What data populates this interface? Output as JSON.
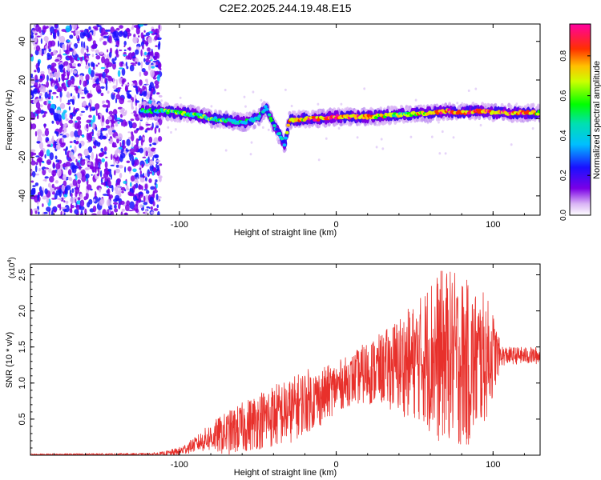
{
  "title": "C2E2.2025.244.19.48.E15",
  "chart_data": [
    {
      "type": "heatmap",
      "xlabel": "Height of straight line (km)",
      "ylabel": "Frequency (Hz)",
      "xlim": [
        -195,
        130
      ],
      "ylim": [
        -50,
        49
      ],
      "x_ticks": [
        -100,
        0,
        100
      ],
      "y_ticks": [
        -40,
        -20,
        0,
        20,
        40
      ],
      "colorbar": {
        "label": "Normalized spectral amplitude",
        "range": [
          0,
          0.96
        ],
        "ticks": [
          "0.0",
          "0.2",
          "0.4",
          "0.6",
          "0.8"
        ],
        "tick_values": [
          0,
          0.2,
          0.4,
          0.6,
          0.8
        ]
      },
      "noise_region_x": [
        -195,
        -115
      ],
      "ridge": {
        "x": [
          -125,
          -110,
          -100,
          -90,
          -80,
          -70,
          -60,
          -50,
          -45,
          -40,
          -35,
          -33,
          -30,
          -20,
          -10,
          0,
          20,
          40,
          60,
          70,
          80,
          90,
          100,
          110,
          130
        ],
        "freq": [
          4,
          4,
          3,
          2,
          0,
          -1,
          -2,
          0,
          6,
          -3,
          -10,
          -14,
          -1,
          0,
          0,
          1,
          1,
          2,
          3,
          4,
          3,
          4,
          3,
          3,
          3
        ],
        "amplitude": [
          0.35,
          0.45,
          0.5,
          0.5,
          0.45,
          0.45,
          0.4,
          0.35,
          0.4,
          0.35,
          0.3,
          0.35,
          0.7,
          0.75,
          0.8,
          0.85,
          0.7,
          0.55,
          0.7,
          0.8,
          0.75,
          0.8,
          0.75,
          0.75,
          0.7
        ]
      }
    },
    {
      "type": "line",
      "xlabel": "Height of straight line (km)",
      "ylabel": "SNR (10 * v/v)",
      "y_scale_label": "(x10",
      "y_scale_exp": "4",
      "y_scale_close": ")",
      "xlim": [
        -195,
        130
      ],
      "ylim": [
        0,
        2.65
      ],
      "x_ticks": [
        -100,
        0,
        100
      ],
      "y_ticks": [
        "0.5",
        "1.0",
        "1.5",
        "2.0",
        "2.5"
      ],
      "y_tick_values": [
        0.5,
        1.0,
        1.5,
        2.0,
        2.5
      ],
      "series": [
        {
          "name": "SNR",
          "color": "#e8302b",
          "envelope_x": [
            -195,
            -120,
            -110,
            -100,
            -90,
            -80,
            -70,
            -60,
            -50,
            -40,
            -30,
            -20,
            -10,
            0,
            10,
            20,
            30,
            40,
            50,
            55,
            60,
            65,
            70,
            75,
            80,
            85,
            90,
            95,
            100,
            105,
            110,
            115,
            120,
            130
          ],
          "envelope_mean": [
            0.01,
            0.01,
            0.02,
            0.05,
            0.15,
            0.25,
            0.3,
            0.38,
            0.48,
            0.55,
            0.6,
            0.75,
            0.8,
            0.95,
            1.05,
            1.15,
            1.2,
            1.25,
            1.3,
            1.35,
            1.4,
            1.35,
            1.4,
            1.35,
            1.3,
            1.25,
            1.3,
            1.35,
            1.4,
            1.38,
            1.38,
            1.38,
            1.38,
            1.38
          ],
          "envelope_amp": [
            0.01,
            0.02,
            0.03,
            0.06,
            0.1,
            0.2,
            0.3,
            0.35,
            0.4,
            0.45,
            0.45,
            0.45,
            0.4,
            0.35,
            0.35,
            0.45,
            0.5,
            0.7,
            0.8,
            0.9,
            1.1,
            1.2,
            1.2,
            1.2,
            1.2,
            1.15,
            1.0,
            0.9,
            0.6,
            0.15,
            0.12,
            0.12,
            0.12,
            0.12
          ]
        }
      ]
    }
  ]
}
